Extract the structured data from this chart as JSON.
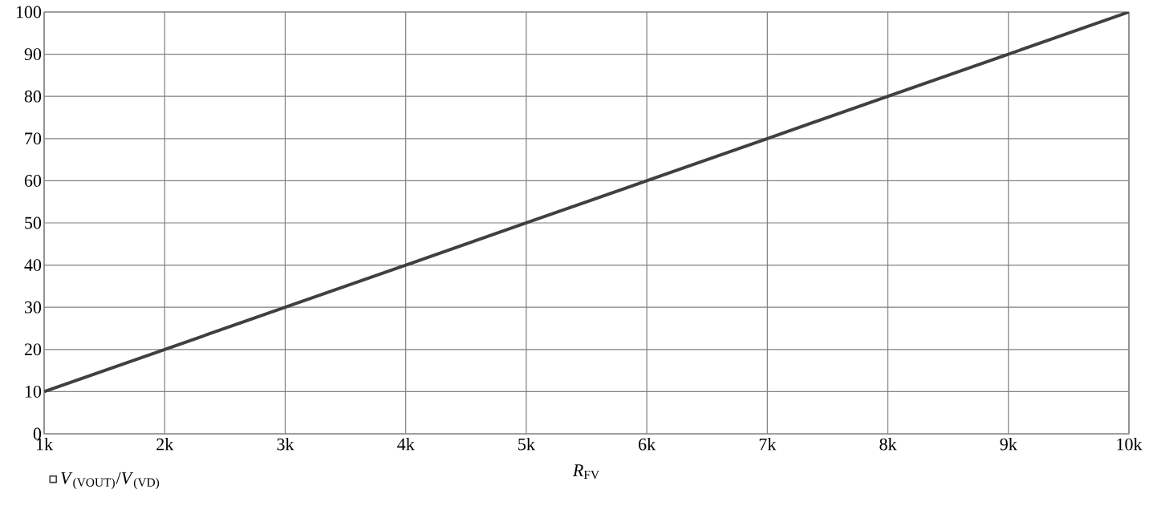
{
  "chart_data": {
    "type": "line",
    "xlabel": "*R*$_{FV}$",
    "x": [
      1000,
      2000,
      3000,
      4000,
      5000,
      6000,
      7000,
      8000,
      9000,
      10000
    ],
    "series": [
      {
        "name": "*V*$_{(VOUT)}$/*V*$_{(VD)}$",
        "color": "#404040",
        "values": [
          10,
          20,
          30,
          40,
          50,
          60,
          70,
          80,
          90,
          100
        ]
      }
    ],
    "xlim": [
      1000,
      10000
    ],
    "ylim": [
      0,
      100
    ],
    "xticks": [
      {
        "value": 1000,
        "label": "1k"
      },
      {
        "value": 2000,
        "label": "2k"
      },
      {
        "value": 3000,
        "label": "3k"
      },
      {
        "value": 4000,
        "label": "4k"
      },
      {
        "value": 5000,
        "label": "5k"
      },
      {
        "value": 6000,
        "label": "6k"
      },
      {
        "value": 7000,
        "label": "7k"
      },
      {
        "value": 8000,
        "label": "8k"
      },
      {
        "value": 9000,
        "label": "9k"
      },
      {
        "value": 10000,
        "label": "10k"
      }
    ],
    "yticks": [
      0,
      10,
      20,
      30,
      40,
      50,
      60,
      70,
      80,
      90,
      100
    ],
    "grid": true,
    "legend": "bottom left",
    "marker": "none",
    "line_style": "solid"
  }
}
